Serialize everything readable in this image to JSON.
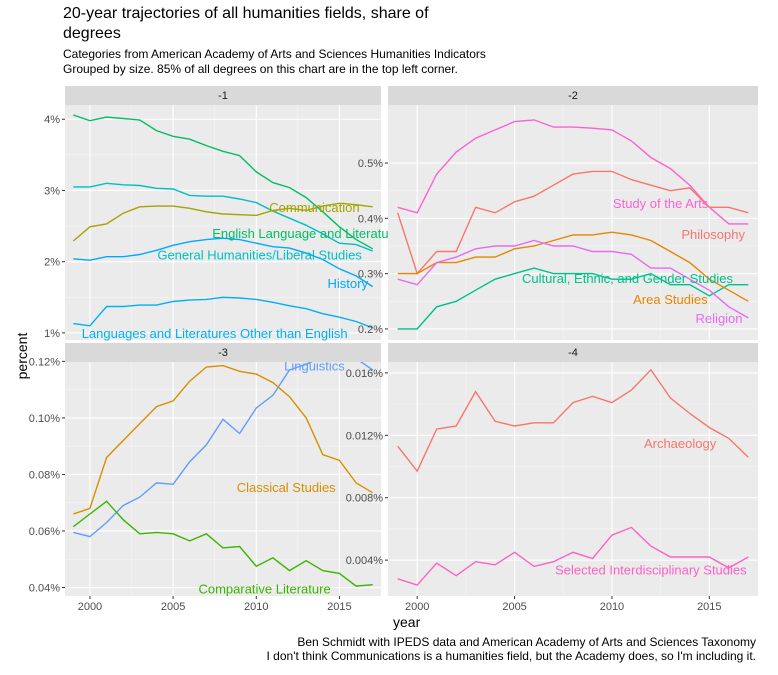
{
  "title": "20-year trajectories of all humanities fields, share of degrees",
  "subtitle_lines": [
    "Categories from American Academy of Arts and Sciences Humanities Indicators",
    "Grouped by size. 85% of all degrees on this chart are in the top left corner."
  ],
  "caption_lines": [
    "Ben Schmidt with IPEDS data and American Academy of Arts and Sciences Taxonomy",
    "I don't think Communications is a humanities field, but the Academy does, so I'm including it."
  ],
  "xlabel": "year",
  "ylabel": "percent",
  "chart_data": [
    {
      "type": "line",
      "facet": "-1",
      "xlim": [
        1998.5,
        2017.5
      ],
      "ylim": [
        0.9,
        4.2
      ],
      "x_ticks": [
        2000,
        2005,
        2010,
        2015
      ],
      "y_ticks": [
        1,
        2,
        3,
        4
      ],
      "y_tick_labels": [
        "1%",
        "2%",
        "3%",
        "4%"
      ],
      "series": [
        {
          "name": "Communication",
          "color": "#a3a500",
          "x": [
            1999,
            2000,
            2001,
            2002,
            2003,
            2004,
            2005,
            2006,
            2007,
            2008,
            2009,
            2010,
            2011,
            2012,
            2013,
            2014,
            2015,
            2016,
            2017
          ],
          "values": [
            2.29,
            2.49,
            2.53,
            2.68,
            2.77,
            2.78,
            2.78,
            2.75,
            2.7,
            2.67,
            2.66,
            2.65,
            2.72,
            2.75,
            2.72,
            2.78,
            2.82,
            2.8,
            2.77
          ]
        },
        {
          "name": "English Language and Literature",
          "color": "#00be67",
          "x": [
            1999,
            2000,
            2001,
            2002,
            2003,
            2004,
            2005,
            2006,
            2007,
            2008,
            2009,
            2010,
            2011,
            2012,
            2013,
            2014,
            2015,
            2016,
            2017
          ],
          "values": [
            4.06,
            3.98,
            4.03,
            4.01,
            3.99,
            3.84,
            3.76,
            3.72,
            3.63,
            3.55,
            3.49,
            3.26,
            3.11,
            3.04,
            2.9,
            2.7,
            2.49,
            2.31,
            2.18
          ]
        },
        {
          "name": "General Humanities/Liberal Studies",
          "color": "#00bfc4",
          "x": [
            1999,
            2000,
            2001,
            2002,
            2003,
            2004,
            2005,
            2006,
            2007,
            2008,
            2009,
            2010,
            2011,
            2012,
            2013,
            2014,
            2015,
            2016,
            2017
          ],
          "values": [
            3.05,
            3.05,
            3.1,
            3.08,
            3.07,
            3.03,
            3.02,
            2.93,
            2.92,
            2.92,
            2.88,
            2.83,
            2.71,
            2.61,
            2.51,
            2.39,
            2.26,
            2.24,
            2.15
          ]
        },
        {
          "name": "History",
          "color": "#00a9ff",
          "x": [
            1999,
            2000,
            2001,
            2002,
            2003,
            2004,
            2005,
            2006,
            2007,
            2008,
            2009,
            2010,
            2011,
            2012,
            2013,
            2014,
            2015,
            2016,
            2017
          ],
          "values": [
            2.04,
            2.02,
            2.07,
            2.07,
            2.1,
            2.16,
            2.23,
            2.28,
            2.31,
            2.33,
            2.31,
            2.26,
            2.21,
            2.19,
            2.12,
            2.03,
            1.9,
            1.8,
            1.65
          ]
        },
        {
          "name": "Languages and Literatures Other than English",
          "color": "#00b0f6",
          "x": [
            1999,
            2000,
            2001,
            2002,
            2003,
            2004,
            2005,
            2006,
            2007,
            2008,
            2009,
            2010,
            2011,
            2012,
            2013,
            2014,
            2015,
            2016,
            2017
          ],
          "values": [
            1.13,
            1.1,
            1.37,
            1.37,
            1.39,
            1.39,
            1.44,
            1.46,
            1.47,
            1.5,
            1.49,
            1.47,
            1.43,
            1.38,
            1.34,
            1.27,
            1.22,
            1.16,
            1.07
          ]
        }
      ],
      "labels": [
        "Communication",
        "English Language and Literature",
        "General Humanities/Liberal Studies",
        "History",
        "Languages and Literatures Other than English"
      ]
    },
    {
      "type": "line",
      "facet": "-2",
      "xlim": [
        1998.5,
        2017.5
      ],
      "ylim": [
        0.18,
        0.605
      ],
      "x_ticks": [
        2000,
        2005,
        2010,
        2015
      ],
      "y_ticks": [
        0.2,
        0.3,
        0.4,
        0.5
      ],
      "y_tick_labels": [
        "0.2%",
        "0.3%",
        "0.4%",
        "0.5%"
      ],
      "series": [
        {
          "name": "Study of the Arts",
          "color": "#fd61d1",
          "x": [
            1999,
            2000,
            2001,
            2002,
            2003,
            2004,
            2005,
            2006,
            2007,
            2008,
            2009,
            2010,
            2011,
            2012,
            2013,
            2014,
            2015,
            2016,
            2017
          ],
          "values": [
            0.42,
            0.41,
            0.48,
            0.52,
            0.545,
            0.56,
            0.575,
            0.578,
            0.565,
            0.565,
            0.563,
            0.56,
            0.54,
            0.51,
            0.49,
            0.46,
            0.42,
            0.39,
            0.39
          ]
        },
        {
          "name": "Philosophy",
          "color": "#f8766d",
          "x": [
            1999,
            2000,
            2001,
            2002,
            2003,
            2004,
            2005,
            2006,
            2007,
            2008,
            2009,
            2010,
            2011,
            2012,
            2013,
            2014,
            2015,
            2016,
            2017
          ],
          "values": [
            0.41,
            0.3,
            0.34,
            0.34,
            0.42,
            0.41,
            0.43,
            0.44,
            0.46,
            0.48,
            0.485,
            0.485,
            0.47,
            0.46,
            0.45,
            0.455,
            0.42,
            0.42,
            0.41
          ]
        },
        {
          "name": "Cultural, Ethnic, and Gender Studies",
          "color": "#00c08b",
          "x": [
            1999,
            2000,
            2001,
            2002,
            2003,
            2004,
            2005,
            2006,
            2007,
            2008,
            2009,
            2010,
            2011,
            2012,
            2013,
            2014,
            2015,
            2016,
            2017
          ],
          "values": [
            0.2,
            0.2,
            0.24,
            0.25,
            0.27,
            0.29,
            0.3,
            0.31,
            0.3,
            0.3,
            0.3,
            0.29,
            0.29,
            0.3,
            0.28,
            0.28,
            0.26,
            0.28,
            0.28
          ]
        },
        {
          "name": "Area Studies",
          "color": "#e58700",
          "x": [
            1999,
            2000,
            2001,
            2002,
            2003,
            2004,
            2005,
            2006,
            2007,
            2008,
            2009,
            2010,
            2011,
            2012,
            2013,
            2014,
            2015,
            2016,
            2017
          ],
          "values": [
            0.3,
            0.3,
            0.32,
            0.32,
            0.33,
            0.33,
            0.345,
            0.35,
            0.36,
            0.37,
            0.37,
            0.375,
            0.37,
            0.36,
            0.34,
            0.32,
            0.29,
            0.27,
            0.25
          ]
        },
        {
          "name": "Religion",
          "color": "#e76bf3",
          "x": [
            1999,
            2000,
            2001,
            2002,
            2003,
            2004,
            2005,
            2006,
            2007,
            2008,
            2009,
            2010,
            2011,
            2012,
            2013,
            2014,
            2015,
            2016,
            2017
          ],
          "values": [
            0.29,
            0.28,
            0.32,
            0.33,
            0.345,
            0.35,
            0.35,
            0.36,
            0.35,
            0.35,
            0.34,
            0.34,
            0.335,
            0.31,
            0.31,
            0.29,
            0.27,
            0.24,
            0.22
          ]
        }
      ],
      "labels": [
        "Study of the Arts",
        "Philosophy",
        "Cultural, Ethnic, and Gender Studies",
        "Area Studies",
        "Religion"
      ]
    },
    {
      "type": "line",
      "facet": "-3",
      "xlim": [
        1998.5,
        2017.5
      ],
      "ylim": [
        0.037,
        0.1265
      ],
      "x_ticks": [
        2000,
        2005,
        2010,
        2015
      ],
      "y_ticks": [
        0.04,
        0.06,
        0.08,
        0.1,
        0.12
      ],
      "y_tick_labels": [
        "0.04%",
        "0.06%",
        "0.08%",
        "0.10%",
        "0.12%"
      ],
      "series": [
        {
          "name": "Linguistics",
          "color": "#619cff",
          "x": [
            1999,
            2000,
            2001,
            2002,
            2003,
            2004,
            2005,
            2006,
            2007,
            2008,
            2009,
            2010,
            2011,
            2012,
            2013,
            2014,
            2015,
            2016,
            2017
          ],
          "values": [
            0.0595,
            0.058,
            0.063,
            0.069,
            0.072,
            0.077,
            0.0765,
            0.0845,
            0.0905,
            0.0995,
            0.0945,
            0.1035,
            0.108,
            0.117,
            0.119,
            0.1215,
            0.122,
            0.121,
            0.117
          ]
        },
        {
          "name": "Classical Studies",
          "color": "#d89000",
          "x": [
            1999,
            2000,
            2001,
            2002,
            2003,
            2004,
            2005,
            2006,
            2007,
            2008,
            2009,
            2010,
            2011,
            2012,
            2013,
            2014,
            2015,
            2016,
            2017
          ],
          "values": [
            0.066,
            0.068,
            0.086,
            0.092,
            0.098,
            0.104,
            0.106,
            0.113,
            0.118,
            0.1185,
            0.1165,
            0.1155,
            0.1125,
            0.1075,
            0.1,
            0.087,
            0.085,
            0.077,
            0.0735
          ]
        },
        {
          "name": "Comparative Literature",
          "color": "#39b600",
          "x": [
            1999,
            2000,
            2001,
            2002,
            2003,
            2004,
            2005,
            2006,
            2007,
            2008,
            2009,
            2010,
            2011,
            2012,
            2013,
            2014,
            2015,
            2016,
            2017
          ],
          "values": [
            0.0615,
            0.066,
            0.0705,
            0.064,
            0.059,
            0.0595,
            0.059,
            0.0565,
            0.059,
            0.054,
            0.0545,
            0.0475,
            0.0505,
            0.046,
            0.0495,
            0.046,
            0.045,
            0.0405,
            0.041
          ]
        }
      ],
      "labels": [
        "Linguistics",
        "Classical Studies",
        "Comparative Literature"
      ]
    },
    {
      "type": "line",
      "facet": "-4",
      "xlim": [
        1998.5,
        2017.5
      ],
      "ylim": [
        0.0017,
        0.0167
      ],
      "x_ticks": [
        2000,
        2005,
        2010,
        2015
      ],
      "y_ticks": [
        0.004,
        0.008,
        0.012,
        0.016
      ],
      "y_tick_labels": [
        "0.004%",
        "0.008%",
        "0.012%",
        "0.016%"
      ],
      "series": [
        {
          "name": "Archaeology",
          "color": "#f8766d",
          "x": [
            1999,
            2000,
            2001,
            2002,
            2003,
            2004,
            2005,
            2006,
            2007,
            2008,
            2009,
            2010,
            2011,
            2012,
            2013,
            2014,
            2015,
            2016,
            2017
          ],
          "values": [
            0.0113,
            0.0097,
            0.0124,
            0.0126,
            0.0148,
            0.0129,
            0.0126,
            0.0128,
            0.0128,
            0.0141,
            0.0145,
            0.0141,
            0.0149,
            0.0162,
            0.0144,
            0.0134,
            0.0125,
            0.0118,
            0.0106
          ]
        },
        {
          "name": "Selected Interdisciplinary Studies",
          "color": "#ff61c3",
          "x": [
            1999,
            2000,
            2001,
            2002,
            2003,
            2004,
            2005,
            2006,
            2007,
            2008,
            2009,
            2010,
            2011,
            2012,
            2013,
            2014,
            2015,
            2016,
            2017
          ],
          "values": [
            0.0028,
            0.0024,
            0.0038,
            0.003,
            0.0039,
            0.0037,
            0.0045,
            0.0036,
            0.0039,
            0.0045,
            0.0041,
            0.0056,
            0.0061,
            0.0049,
            0.0042,
            0.0042,
            0.0042,
            0.0035,
            0.0042
          ]
        }
      ],
      "labels": [
        "Archaeology",
        "Selected Interdisciplinary Studies"
      ]
    }
  ]
}
